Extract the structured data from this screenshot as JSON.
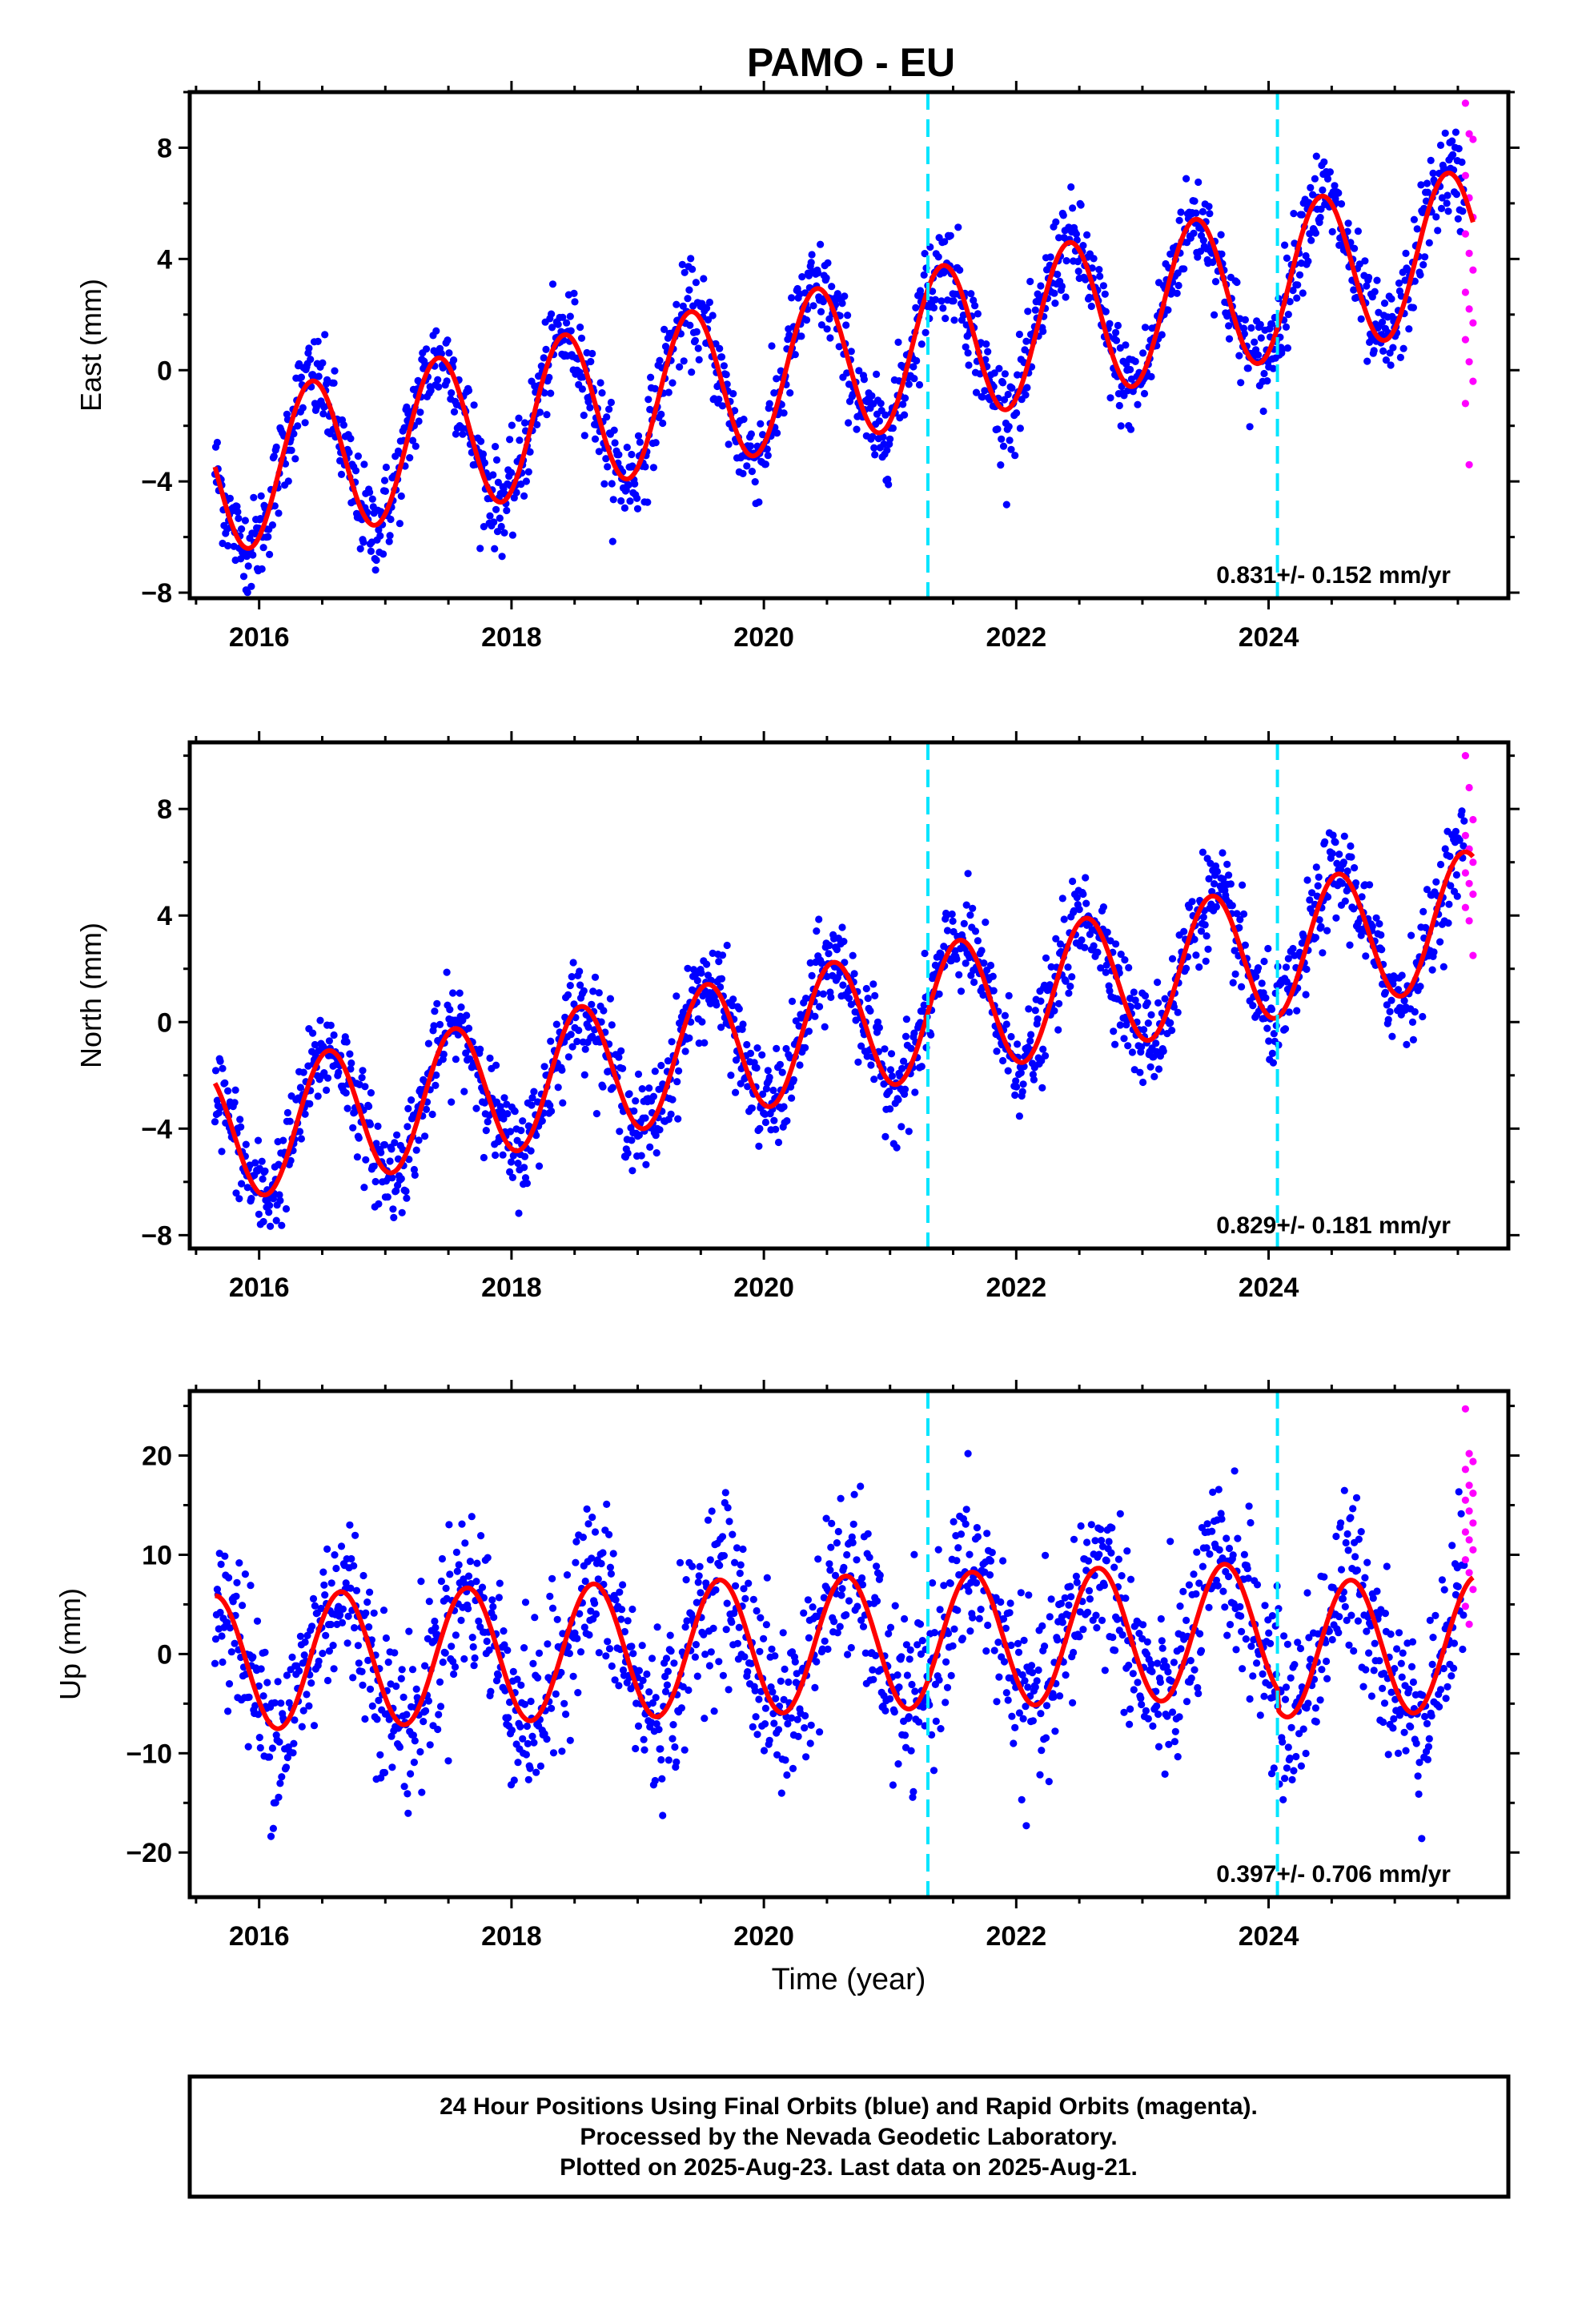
{
  "title": "PAMO - EU",
  "xlabel": "Time (year)",
  "footer": {
    "line1": "24 Hour Positions Using Final Orbits (blue) and Rapid Orbits (magenta).",
    "line2": "Processed by the Nevada Geodetic Laboratory.",
    "line3": "Plotted on 2025-Aug-23. Last data on 2025-Aug-21."
  },
  "colors": {
    "final_orbits": "#0000ff",
    "rapid_orbits": "#ff00ff",
    "model_fit": "#ff0000",
    "equipment_change": "#00e5ff"
  },
  "chart_data": [
    {
      "type": "scatter",
      "panel": "east",
      "ylabel": "East (mm)",
      "xlim": [
        2015.45,
        2025.9
      ],
      "ylim": [
        -8.2,
        10.0
      ],
      "xticks": [
        2016,
        2018,
        2020,
        2022,
        2024
      ],
      "yticks": [
        -8,
        -4,
        0,
        4,
        8
      ],
      "rate_label": "0.831+/- 0.152 mm/yr",
      "break_lines": [
        2021.3,
        2024.07
      ],
      "trend": {
        "slope_mm_per_yr": 0.831,
        "ref_year": 2020.5,
        "ref_value": 0.2
      },
      "seasonal": {
        "amplitude": 2.8,
        "peak_phase": 0.42,
        "noise": 0.85
      },
      "series": [
        {
          "name": "Final Orbits",
          "x_start": 2015.65,
          "x_end": 2025.55,
          "n": 1650
        },
        {
          "name": "Rapid Orbits",
          "x_start": 2025.56,
          "x_end": 2025.62,
          "values": [
            9.6,
            8.5,
            8.3,
            7.0,
            6.2,
            5.5,
            4.9,
            4.2,
            3.6,
            2.8,
            2.2,
            1.7,
            1.1,
            0.3,
            -0.4,
            -1.2,
            -3.4
          ]
        }
      ]
    },
    {
      "type": "scatter",
      "panel": "north",
      "ylabel": "North (mm)",
      "xlim": [
        2015.45,
        2025.9
      ],
      "ylim": [
        -8.5,
        10.5
      ],
      "xticks": [
        2016,
        2018,
        2020,
        2022,
        2024
      ],
      "yticks": [
        -8,
        -4,
        0,
        4,
        8
      ],
      "rate_label": "0.829+/- 0.181 mm/yr",
      "break_lines": [
        2021.3,
        2024.07
      ],
      "trend": {
        "slope_mm_per_yr": 0.829,
        "ref_year": 2020.5,
        "ref_value": -0.3
      },
      "seasonal": {
        "amplitude": 2.5,
        "peak_phase": 0.55,
        "noise": 0.9
      },
      "series": [
        {
          "name": "Final Orbits",
          "x_start": 2015.65,
          "x_end": 2025.55,
          "n": 1650
        },
        {
          "name": "Rapid Orbits",
          "x_start": 2025.56,
          "x_end": 2025.62,
          "values": [
            10.0,
            8.8,
            7.6,
            7.0,
            6.5,
            6.0,
            5.6,
            5.2,
            4.8,
            4.3,
            3.8,
            2.5
          ]
        }
      ]
    },
    {
      "type": "scatter",
      "panel": "up",
      "ylabel": "Up (mm)",
      "xlim": [
        2015.45,
        2025.9
      ],
      "ylim": [
        -24.5,
        26.5
      ],
      "xticks": [
        2016,
        2018,
        2020,
        2022,
        2024
      ],
      "yticks": [
        -20,
        -10,
        0,
        10,
        20
      ],
      "rate_label": "0.397+/- 0.706 mm/yr",
      "break_lines": [
        2021.3,
        2024.07
      ],
      "trend": {
        "slope_mm_per_yr": 0.397,
        "ref_year": 2020.5,
        "ref_value": 1.0
      },
      "seasonal": {
        "amplitude": 6.8,
        "peak_phase": 0.65,
        "noise": 4.3
      },
      "series": [
        {
          "name": "Final Orbits",
          "x_start": 2015.65,
          "x_end": 2025.55,
          "n": 1650
        },
        {
          "name": "Rapid Orbits",
          "x_start": 2025.56,
          "x_end": 2025.62,
          "values": [
            24.7,
            20.2,
            19.4,
            18.6,
            17.0,
            16.2,
            15.5,
            14.4,
            13.2,
            12.3,
            11.5,
            10.5,
            9.5,
            8.2,
            6.5,
            4.8,
            3.0
          ]
        }
      ]
    }
  ]
}
